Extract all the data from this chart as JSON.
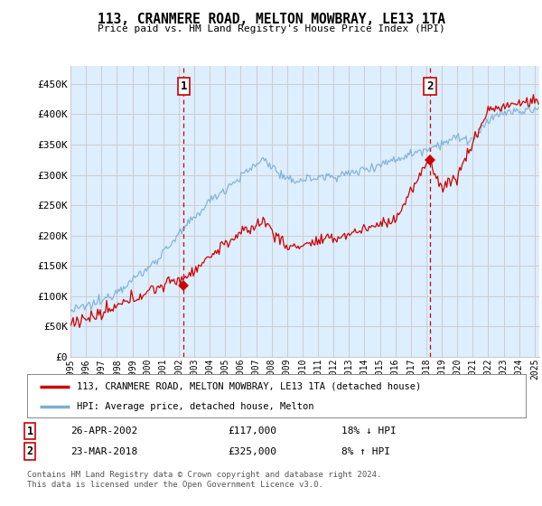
{
  "title": "113, CRANMERE ROAD, MELTON MOWBRAY, LE13 1TA",
  "subtitle": "Price paid vs. HM Land Registry's House Price Index (HPI)",
  "ylabel_ticks": [
    "£0",
    "£50K",
    "£100K",
    "£150K",
    "£200K",
    "£250K",
    "£300K",
    "£350K",
    "£400K",
    "£450K"
  ],
  "ytick_values": [
    0,
    50000,
    100000,
    150000,
    200000,
    250000,
    300000,
    350000,
    400000,
    450000
  ],
  "ylim": [
    0,
    480000
  ],
  "xlim_start": 1995.0,
  "xlim_end": 2025.3,
  "x_tick_years": [
    1995,
    1996,
    1997,
    1998,
    1999,
    2000,
    2001,
    2002,
    2003,
    2004,
    2005,
    2006,
    2007,
    2008,
    2009,
    2010,
    2011,
    2012,
    2013,
    2014,
    2015,
    2016,
    2017,
    2018,
    2019,
    2020,
    2021,
    2022,
    2023,
    2024,
    2025
  ],
  "sale1_x": 2002.32,
  "sale1_y": 117000,
  "sale1_label": "1",
  "sale1_date": "26-APR-2002",
  "sale1_price": "£117,000",
  "sale1_hpi": "18% ↓ HPI",
  "sale2_x": 2018.23,
  "sale2_y": 325000,
  "sale2_label": "2",
  "sale2_date": "23-MAR-2018",
  "sale2_price": "£325,000",
  "sale2_hpi": "8% ↑ HPI",
  "legend_line1": "113, CRANMERE ROAD, MELTON MOWBRAY, LE13 1TA (detached house)",
  "legend_line2": "HPI: Average price, detached house, Melton",
  "footer1": "Contains HM Land Registry data © Crown copyright and database right 2024.",
  "footer2": "This data is licensed under the Open Government Licence v3.0.",
  "hpi_color": "#7bafd4",
  "price_color": "#cc0000",
  "vline_color": "#cc0000",
  "grid_color": "#cccccc",
  "bg_color": "#ffffff",
  "plot_bg_color": "#ddeeff"
}
